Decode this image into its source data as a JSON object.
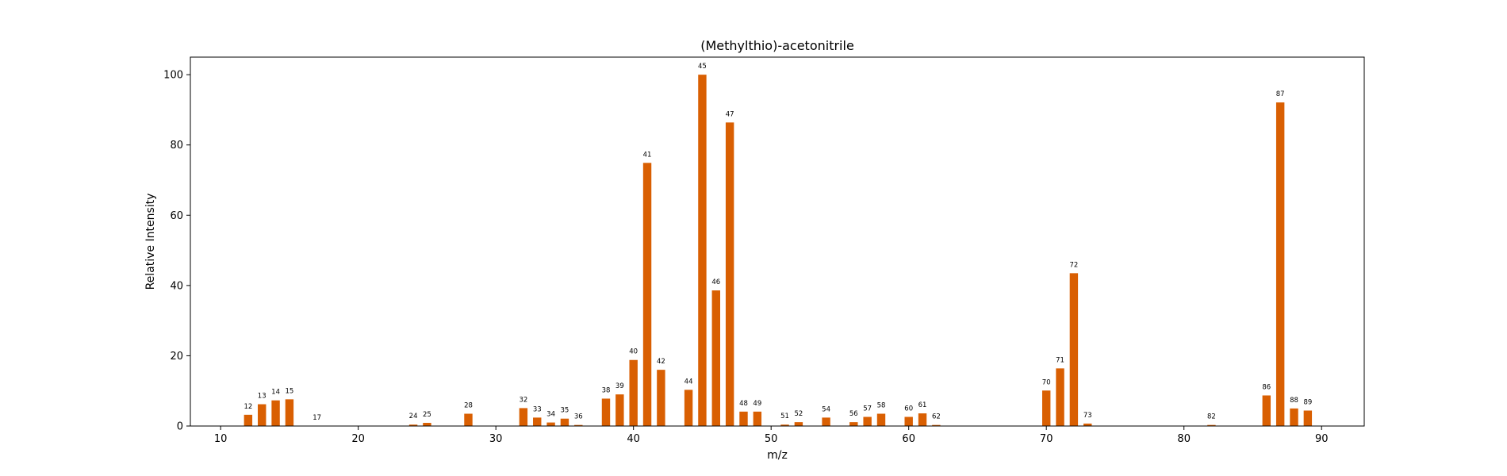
{
  "chart_data": {
    "type": "bar",
    "title": "(Methylthio)-acetonitrile",
    "xlabel": "m/z",
    "ylabel": "Relative Intensity",
    "xlim": [
      7.8,
      93.1
    ],
    "ylim": [
      0,
      105
    ],
    "xticks": [
      10,
      20,
      30,
      40,
      50,
      60,
      70,
      80,
      90
    ],
    "yticks": [
      0,
      20,
      40,
      60,
      80,
      100
    ],
    "grid": false,
    "bar_color": "#d95f02",
    "bar_width_data": 0.6,
    "x": [
      12,
      13,
      14,
      15,
      17,
      24,
      25,
      28,
      32,
      33,
      34,
      35,
      36,
      38,
      39,
      40,
      41,
      42,
      44,
      45,
      46,
      47,
      48,
      49,
      51,
      52,
      54,
      56,
      57,
      58,
      60,
      61,
      62,
      70,
      71,
      72,
      73,
      82,
      86,
      87,
      88,
      89
    ],
    "values": [
      3.2,
      6.2,
      7.3,
      7.6,
      0.0,
      0.4,
      0.9,
      3.5,
      5.1,
      2.4,
      1.0,
      2.1,
      0.3,
      7.8,
      9.0,
      18.8,
      74.9,
      16.0,
      10.3,
      100.0,
      38.6,
      86.4,
      4.1,
      4.1,
      0.4,
      1.1,
      2.4,
      1.1,
      2.6,
      3.5,
      2.6,
      3.6,
      0.3,
      10.1,
      16.4,
      43.5,
      0.7,
      0.3,
      8.7,
      92.1,
      5.0,
      4.4
    ],
    "labels": [
      "12",
      "13",
      "14",
      "15",
      "17",
      "24",
      "25",
      "28",
      "32",
      "33",
      "34",
      "35",
      "36",
      "38",
      "39",
      "40",
      "41",
      "42",
      "44",
      "45",
      "46",
      "47",
      "48",
      "49",
      "51",
      "52",
      "54",
      "56",
      "57",
      "58",
      "60",
      "61",
      "62",
      "70",
      "71",
      "72",
      "73",
      "82",
      "86",
      "87",
      "88",
      "89"
    ]
  }
}
